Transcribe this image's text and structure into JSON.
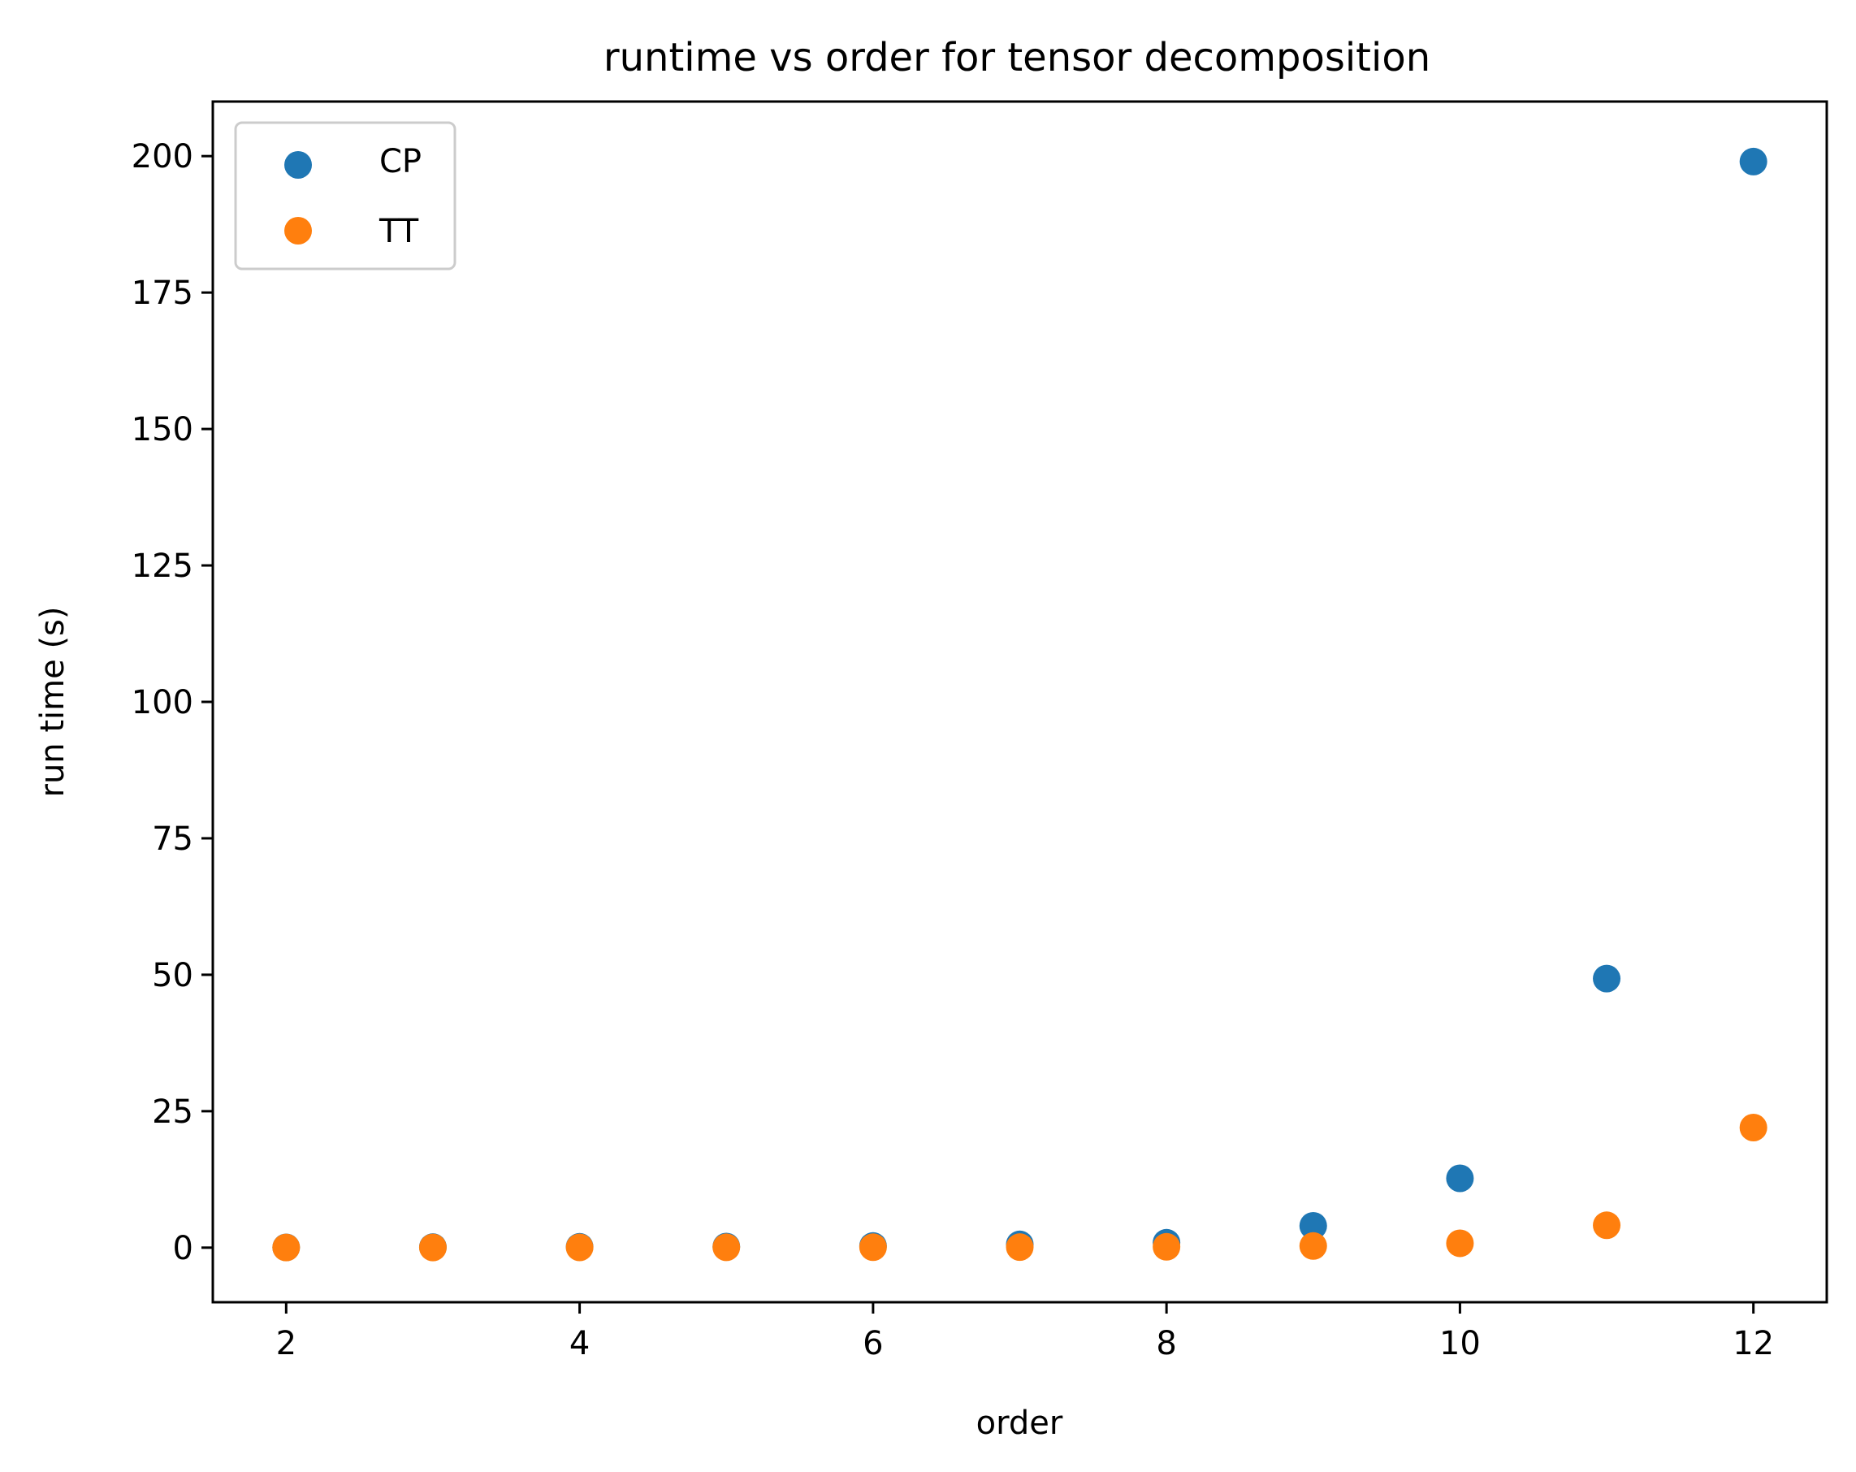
{
  "chart_data": {
    "type": "scatter",
    "title": "runtime vs order for tensor decomposition",
    "xlabel": "order",
    "ylabel": "run time (s)",
    "xlim": [
      1.5,
      12.5
    ],
    "ylim": [
      -10,
      210
    ],
    "xticks": [
      2,
      4,
      6,
      8,
      10,
      12
    ],
    "yticks": [
      0,
      25,
      50,
      75,
      100,
      125,
      150,
      175,
      200
    ],
    "grid": false,
    "legend_position": "top-left",
    "x": [
      2,
      3,
      4,
      5,
      6,
      7,
      8,
      9,
      10,
      11,
      12
    ],
    "series": [
      {
        "name": "CP",
        "color": "#1f77b4",
        "values": [
          0.05,
          0.1,
          0.15,
          0.2,
          0.3,
          0.6,
          0.9,
          4.0,
          12.7,
          49.3,
          199.0
        ]
      },
      {
        "name": "TT",
        "color": "#ff7f0e",
        "values": [
          0.02,
          0.03,
          0.05,
          0.06,
          0.08,
          0.1,
          0.15,
          0.3,
          0.8,
          4.1,
          22.0
        ]
      }
    ]
  }
}
